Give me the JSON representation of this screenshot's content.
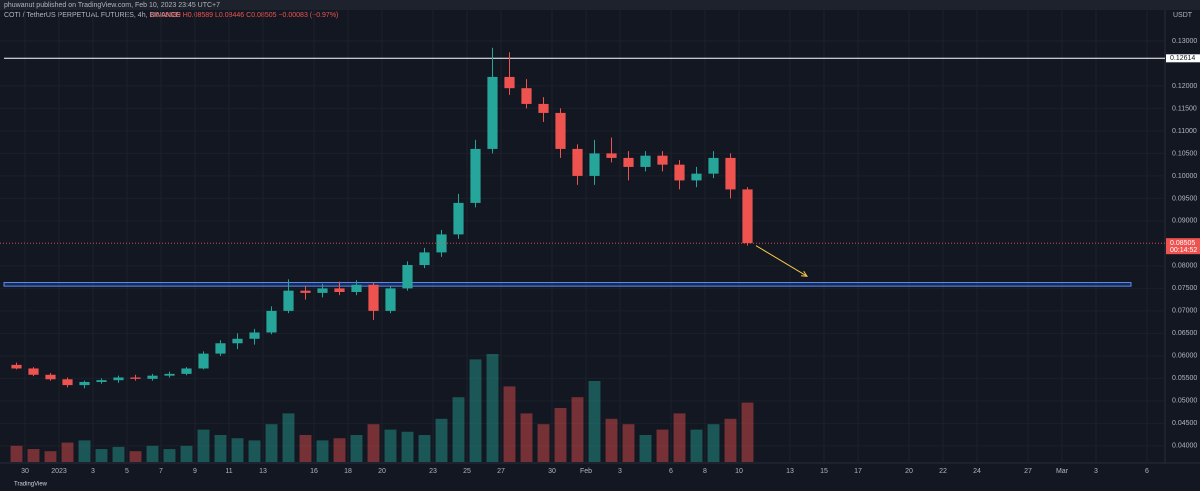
{
  "header": {
    "title": "phuwanut published on TradingView.com, Feb 10, 2023 23:45 UTC+7"
  },
  "chart_data": {
    "type": "candlestick",
    "legend": "COTI / TetherUS PERPETUAL FUTURES, 4h, BINANCE",
    "ohlc_text": "O0.08589 H0.08589 L0.08446 C0.08505 −0.00083 (−0.97%)",
    "currency": "USDT",
    "footer": "TradingView",
    "up_color": "#26a69a",
    "down_color": "#ef5350",
    "x": [
      "2022-12-29",
      "2022-12-30",
      "2022-12-31",
      "2023-01-01",
      "2023-01-02",
      "2023-01-03",
      "2023-01-04",
      "2023-01-05",
      "2023-01-06",
      "2023-01-07",
      "2023-01-08",
      "2023-01-09",
      "2023-01-10",
      "2023-01-11",
      "2023-01-12",
      "2023-01-13",
      "2023-01-14",
      "2023-01-15",
      "2023-01-16",
      "2023-01-17",
      "2023-01-18",
      "2023-01-19",
      "2023-01-20",
      "2023-01-21",
      "2023-01-22",
      "2023-01-23",
      "2023-01-24",
      "2023-01-25",
      "2023-01-26",
      "2023-01-27",
      "2023-01-28",
      "2023-01-29",
      "2023-01-30",
      "2023-01-31",
      "2023-02-01",
      "2023-02-02",
      "2023-02-03",
      "2023-02-04",
      "2023-02-05",
      "2023-02-06",
      "2023-02-07",
      "2023-02-08",
      "2023-02-09",
      "2023-02-10"
    ],
    "ohlc": [
      [
        0.058,
        0.0585,
        0.057,
        0.0572
      ],
      [
        0.0572,
        0.0575,
        0.0555,
        0.0558
      ],
      [
        0.0558,
        0.0562,
        0.0545,
        0.0548
      ],
      [
        0.0548,
        0.0552,
        0.053,
        0.0535
      ],
      [
        0.0535,
        0.0545,
        0.0528,
        0.0542
      ],
      [
        0.0542,
        0.055,
        0.0538,
        0.0546
      ],
      [
        0.0546,
        0.0556,
        0.054,
        0.0552
      ],
      [
        0.0552,
        0.0558,
        0.0545,
        0.0549
      ],
      [
        0.0549,
        0.056,
        0.0545,
        0.0556
      ],
      [
        0.0556,
        0.0565,
        0.0552,
        0.056
      ],
      [
        0.056,
        0.0575,
        0.0557,
        0.0572
      ],
      [
        0.0572,
        0.061,
        0.057,
        0.0605
      ],
      [
        0.0605,
        0.0635,
        0.06,
        0.0628
      ],
      [
        0.0628,
        0.065,
        0.0615,
        0.0638
      ],
      [
        0.0638,
        0.066,
        0.0625,
        0.0652
      ],
      [
        0.0652,
        0.071,
        0.0648,
        0.07
      ],
      [
        0.07,
        0.077,
        0.0695,
        0.0745
      ],
      [
        0.0745,
        0.0755,
        0.0725,
        0.074
      ],
      [
        0.074,
        0.076,
        0.073,
        0.075
      ],
      [
        0.075,
        0.0765,
        0.0735,
        0.0742
      ],
      [
        0.0742,
        0.0768,
        0.0735,
        0.0758
      ],
      [
        0.0758,
        0.0762,
        0.068,
        0.07
      ],
      [
        0.07,
        0.0755,
        0.0695,
        0.075
      ],
      [
        0.075,
        0.081,
        0.0745,
        0.0802
      ],
      [
        0.0802,
        0.084,
        0.0795,
        0.083
      ],
      [
        0.083,
        0.088,
        0.082,
        0.087
      ],
      [
        0.087,
        0.096,
        0.086,
        0.094
      ],
      [
        0.094,
        0.108,
        0.093,
        0.106
      ],
      [
        0.106,
        0.1285,
        0.105,
        0.122
      ],
      [
        0.122,
        0.1275,
        0.118,
        0.1195
      ],
      [
        0.1195,
        0.1215,
        0.115,
        0.116
      ],
      [
        0.116,
        0.1175,
        0.112,
        0.114
      ],
      [
        0.114,
        0.115,
        0.104,
        0.106
      ],
      [
        0.106,
        0.107,
        0.098,
        0.1
      ],
      [
        0.1,
        0.108,
        0.098,
        0.105
      ],
      [
        0.105,
        0.1085,
        0.103,
        0.104
      ],
      [
        0.104,
        0.1055,
        0.099,
        0.102
      ],
      [
        0.102,
        0.1055,
        0.101,
        0.1045
      ],
      [
        0.1045,
        0.1055,
        0.101,
        0.1025
      ],
      [
        0.1025,
        0.1035,
        0.097,
        0.099
      ],
      [
        0.099,
        0.102,
        0.0975,
        0.1005
      ],
      [
        0.1005,
        0.1055,
        0.0995,
        0.104
      ],
      [
        0.104,
        0.105,
        0.095,
        0.097
      ],
      [
        0.097,
        0.0975,
        0.0845,
        0.08505
      ]
    ],
    "volume": [
      15,
      12,
      10,
      18,
      20,
      12,
      14,
      10,
      15,
      12,
      15,
      30,
      25,
      22,
      20,
      35,
      45,
      25,
      20,
      22,
      25,
      35,
      30,
      28,
      25,
      40,
      60,
      95,
      100,
      70,
      45,
      35,
      50,
      60,
      75,
      40,
      35,
      25,
      30,
      45,
      30,
      35,
      40,
      55
    ],
    "volume_lim": [
      0,
      100
    ],
    "xlim": [
      "2022-12-29",
      "2023-03-07"
    ],
    "xticks": [
      {
        "value": "2022-12-30",
        "label": "30"
      },
      {
        "value": "2023-01-01",
        "label": "2023"
      },
      {
        "value": "2023-01-03",
        "label": "3"
      },
      {
        "value": "2023-01-05",
        "label": "5"
      },
      {
        "value": "2023-01-07",
        "label": "7"
      },
      {
        "value": "2023-01-09",
        "label": "9"
      },
      {
        "value": "2023-01-11",
        "label": "11"
      },
      {
        "value": "2023-01-13",
        "label": "13"
      },
      {
        "value": "2023-01-16",
        "label": "16"
      },
      {
        "value": "2023-01-18",
        "label": "18"
      },
      {
        "value": "2023-01-20",
        "label": "20"
      },
      {
        "value": "2023-01-23",
        "label": "23"
      },
      {
        "value": "2023-01-25",
        "label": "25"
      },
      {
        "value": "2023-01-27",
        "label": "27"
      },
      {
        "value": "2023-01-30",
        "label": "30"
      },
      {
        "value": "2023-02-01",
        "label": "Feb"
      },
      {
        "value": "2023-02-03",
        "label": "3"
      },
      {
        "value": "2023-02-06",
        "label": "6"
      },
      {
        "value": "2023-02-08",
        "label": "8"
      },
      {
        "value": "2023-02-10",
        "label": "10"
      },
      {
        "value": "2023-02-13",
        "label": "13"
      },
      {
        "value": "2023-02-15",
        "label": "15"
      },
      {
        "value": "2023-02-17",
        "label": "17"
      },
      {
        "value": "2023-02-20",
        "label": "20"
      },
      {
        "value": "2023-02-22",
        "label": "22"
      },
      {
        "value": "2023-02-24",
        "label": "24"
      },
      {
        "value": "2023-02-27",
        "label": "27"
      },
      {
        "value": "2023-03-01",
        "label": "Mar"
      },
      {
        "value": "2023-03-03",
        "label": "3"
      },
      {
        "value": "2023-03-06",
        "label": "6"
      }
    ],
    "ylim": [
      0.0373,
      0.1391
    ],
    "yticks": [
      {
        "value": 0.13,
        "label": "0.13000"
      },
      {
        "value": 0.12,
        "label": "0.12000"
      },
      {
        "value": 0.115,
        "label": "0.11500"
      },
      {
        "value": 0.11,
        "label": "0.11000"
      },
      {
        "value": 0.105,
        "label": "0.10500"
      },
      {
        "value": 0.1,
        "label": "0.10000"
      },
      {
        "value": 0.095,
        "label": "0.09500"
      },
      {
        "value": 0.09,
        "label": "0.09000"
      },
      {
        "value": 0.08,
        "label": "0.08000"
      },
      {
        "value": 0.075,
        "label": "0.07500"
      },
      {
        "value": 0.07,
        "label": "0.07000"
      },
      {
        "value": 0.065,
        "label": "0.06500"
      },
      {
        "value": 0.06,
        "label": "0.06000"
      },
      {
        "value": 0.055,
        "label": "0.05500"
      },
      {
        "value": 0.05,
        "label": "0.05000"
      },
      {
        "value": 0.045,
        "label": "0.04500"
      },
      {
        "value": 0.04,
        "label": "0.04000"
      }
    ],
    "resistance": {
      "value": 0.12614,
      "label": "0.12614"
    },
    "support_zone": [
      0.0755,
      0.0763
    ],
    "last_price": {
      "value": 0.08505,
      "label": "0.08505"
    },
    "countdown": "00:14:52",
    "arrow": {
      "from": [
        "2023-02-11",
        "0.0845"
      ],
      "to": [
        "2023-02-14",
        "0.0777"
      ]
    }
  }
}
